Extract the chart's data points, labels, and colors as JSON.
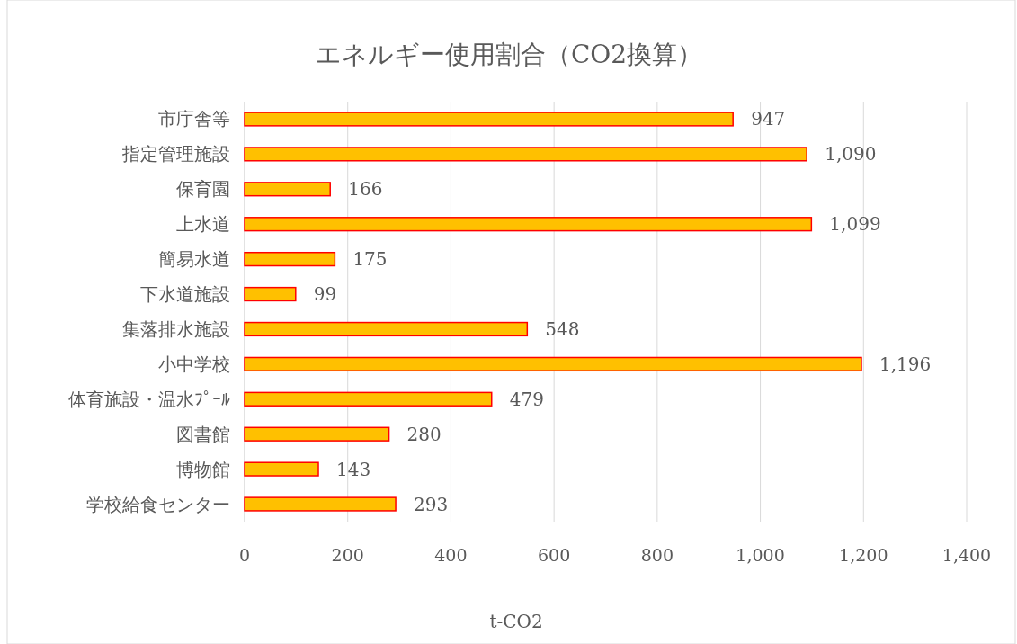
{
  "chart_data": {
    "type": "bar",
    "orientation": "horizontal",
    "title": "エネルギー使用割合（CO2換算）",
    "xlabel": "t-CO2",
    "categories": [
      "市庁舎等",
      "指定管理施設",
      "保育園",
      "上水道",
      "簡易水道",
      "下水道施設",
      "集落排水施設",
      "小中学校",
      "体育施設・温水ﾌﾟｰﾙ",
      "図書館",
      "博物館",
      "学校給食センター"
    ],
    "series": [
      {
        "color": "#ffc000",
        "values": [
          947,
          1090,
          166,
          1099,
          175,
          99,
          548,
          1196,
          479,
          280,
          143,
          293
        ],
        "value_labels": [
          "947",
          "1,090",
          "166",
          "1,099",
          "175",
          "99",
          "548",
          "1,196",
          "479",
          "280",
          "143",
          "293"
        ]
      }
    ],
    "xlim": [
      0,
      1400
    ],
    "xticks": [
      0,
      200,
      400,
      600,
      800,
      {
        "value": 1000,
        "label": "1,000"
      },
      {
        "value": 1200,
        "label": "1,200"
      },
      {
        "value": 1400,
        "label": "1,400"
      }
    ],
    "grid": "x"
  }
}
